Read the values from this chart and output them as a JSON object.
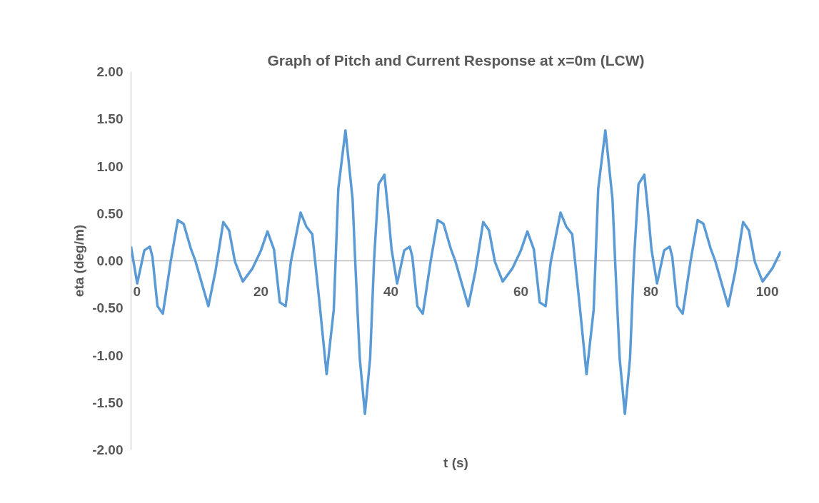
{
  "chart_data": {
    "type": "line",
    "title": "Graph of Pitch and Current Response at x=0m (LCW)",
    "xlabel": "t (s)",
    "ylabel": "eta (deg/m)",
    "xlim": [
      0,
      100
    ],
    "xticks": [
      0,
      20,
      40,
      60,
      80,
      100
    ],
    "ylim": [
      -2,
      2
    ],
    "yticks": [
      {
        "value": -2,
        "label": "-2.00"
      },
      {
        "value": -1.5,
        "label": "-1.50"
      },
      {
        "value": -1,
        "label": "-1.00"
      },
      {
        "value": -0.5,
        "label": "-0.50"
      },
      {
        "value": 0,
        "label": "0.00"
      },
      {
        "value": 0.5,
        "label": "0.50"
      },
      {
        "value": 1,
        "label": "1.00"
      },
      {
        "value": 1.5,
        "label": "1.50"
      },
      {
        "value": 2,
        "label": "2.00"
      }
    ],
    "grid": false,
    "marker": "none",
    "line_style": "solid",
    "series": [
      {
        "color": "#5b9bd5",
        "x": [
          0,
          0.95,
          2.05,
          2.9,
          3.3,
          4.07,
          4.9,
          6.1,
          7.2,
          8.1,
          9.2,
          9.9,
          11.9,
          13.0,
          14.2,
          15.1,
          16.0,
          17.2,
          18.7,
          20.0,
          21.0,
          22.0,
          22.9,
          23.8,
          24.6,
          26.1,
          27.0,
          27.9,
          29.0,
          30.1,
          31.2,
          31.9,
          33.0,
          34.1,
          34.5,
          35.2,
          36.0,
          36.8,
          37.4,
          38.1,
          39.0,
          39.6,
          40.1,
          40.95,
          42.05,
          42.9,
          43.3,
          44.07,
          44.9,
          46.1,
          47.2,
          48.1,
          49.2,
          49.9,
          51.9,
          53.0,
          54.2,
          55.1,
          56.0,
          57.2,
          58.7,
          60.0,
          61.0,
          62.0,
          62.9,
          63.8,
          64.6,
          66.1,
          67.0,
          67.9,
          69.0,
          70.1,
          71.2,
          71.9,
          73.0,
          74.1,
          74.5,
          75.2,
          76.0,
          76.8,
          77.4,
          78.1,
          79.0,
          79.6,
          80.1,
          80.95,
          82.05,
          82.9,
          83.3,
          84.07,
          84.9,
          86.1,
          87.2,
          88.1,
          89.2,
          89.9,
          91.9,
          93.0,
          94.2,
          95.1,
          96.0,
          97.2,
          98.7,
          100.0
        ],
        "values": [
          0.15,
          -0.24,
          0.11,
          0.15,
          0.04,
          -0.48,
          -0.56,
          -0.01,
          0.43,
          0.39,
          0.13,
          0.0,
          -0.48,
          -0.11,
          0.41,
          0.32,
          -0.01,
          -0.22,
          -0.08,
          0.11,
          0.31,
          0.12,
          -0.44,
          -0.48,
          -0.01,
          0.51,
          0.36,
          0.28,
          -0.44,
          -1.2,
          -0.52,
          0.76,
          1.38,
          0.65,
          0.0,
          -1.03,
          -1.62,
          -1.03,
          0.0,
          0.81,
          0.91,
          0.5,
          0.12,
          -0.24,
          0.11,
          0.15,
          0.04,
          -0.48,
          -0.56,
          -0.01,
          0.43,
          0.39,
          0.13,
          0.0,
          -0.48,
          -0.11,
          0.41,
          0.32,
          -0.01,
          -0.22,
          -0.08,
          0.11,
          0.31,
          0.12,
          -0.44,
          -0.48,
          -0.01,
          0.51,
          0.36,
          0.28,
          -0.44,
          -1.2,
          -0.52,
          0.76,
          1.38,
          0.65,
          0.0,
          -1.03,
          -1.62,
          -1.03,
          0.0,
          0.81,
          0.91,
          0.5,
          0.12,
          -0.24,
          0.11,
          0.15,
          0.04,
          -0.48,
          -0.56,
          -0.01,
          0.43,
          0.39,
          0.13,
          0.0,
          -0.48,
          -0.11,
          0.41,
          0.32,
          -0.01,
          -0.22,
          -0.08,
          0.1
        ]
      }
    ]
  }
}
